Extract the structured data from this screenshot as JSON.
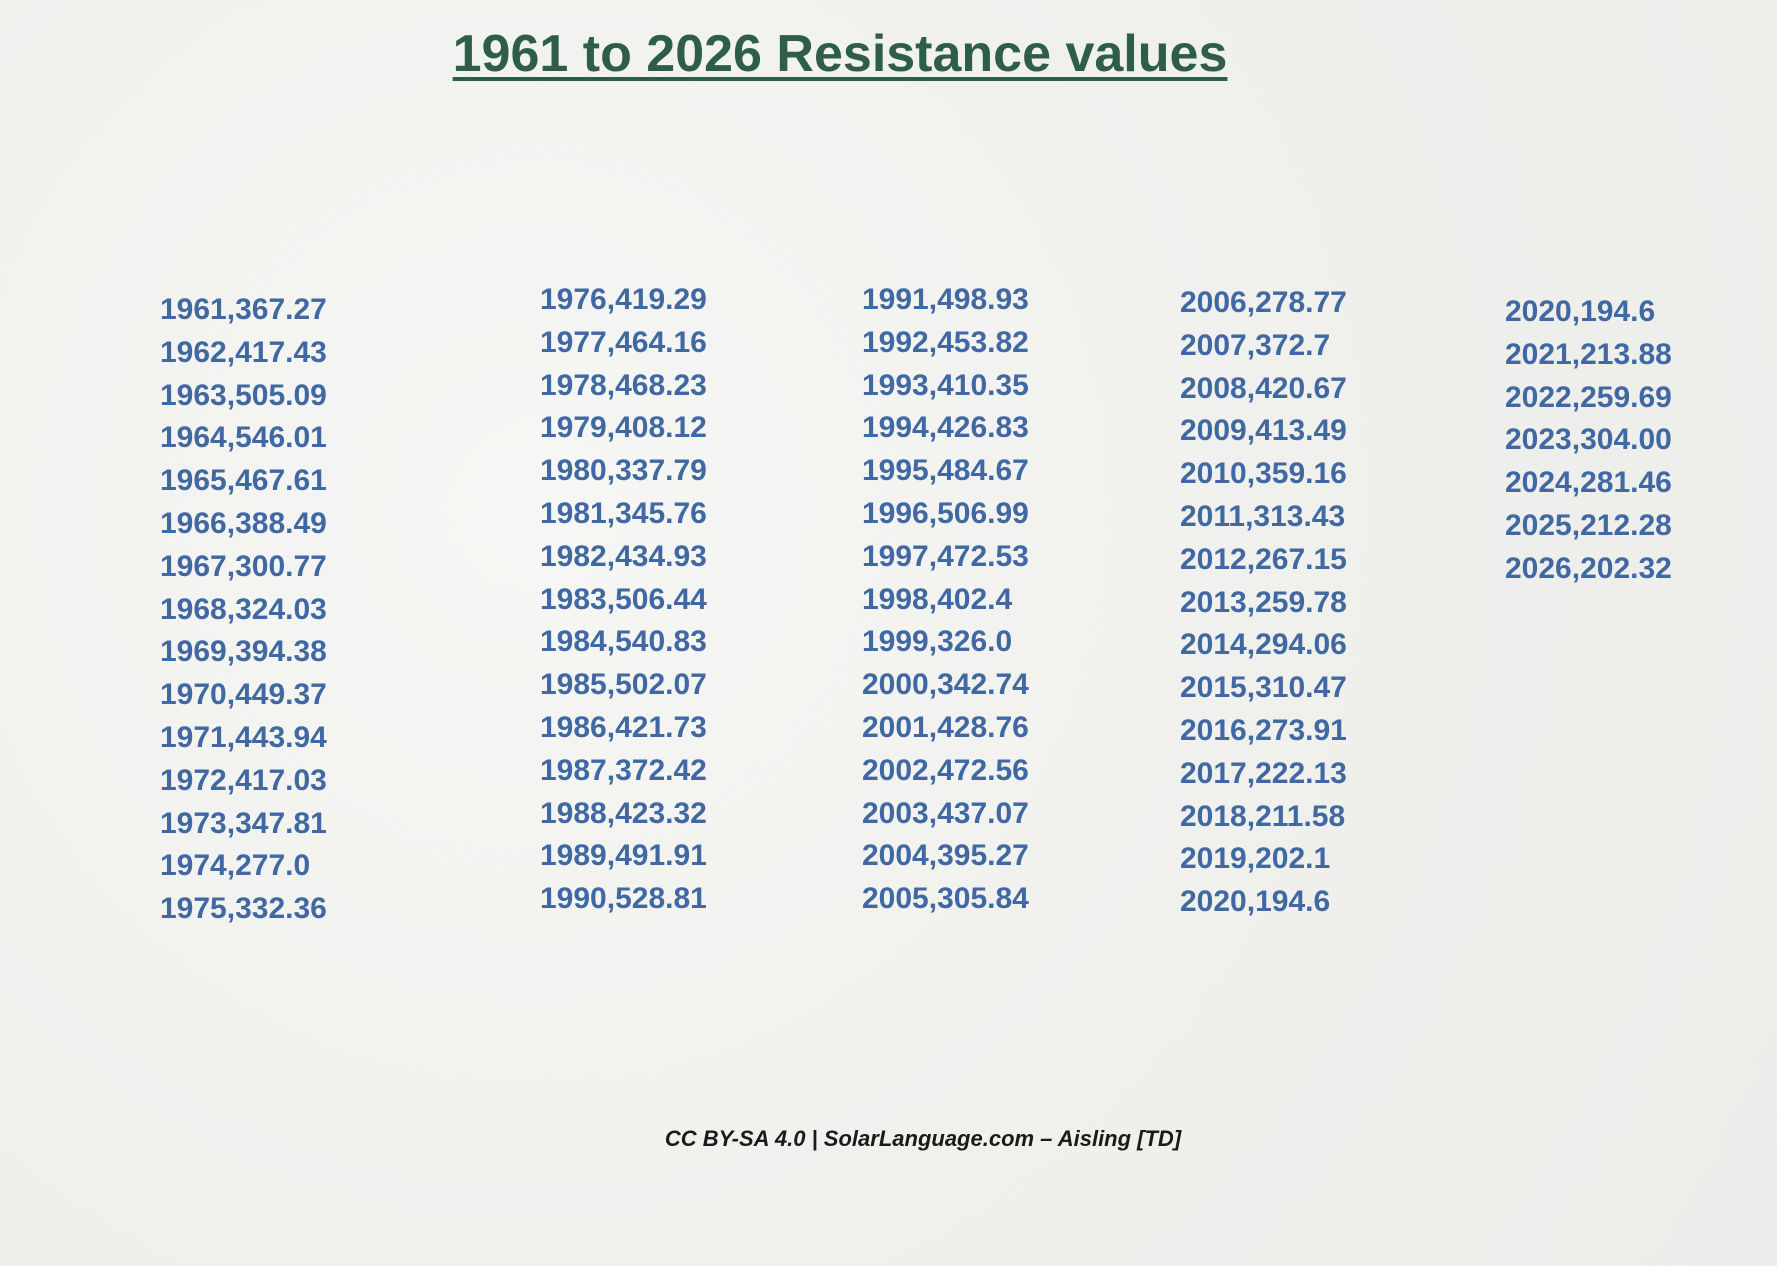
{
  "title": "1961 to 2026 Resistance values",
  "columns": [
    [
      "1961,367.27",
      "1962,417.43",
      "1963,505.09",
      "1964,546.01",
      "1965,467.61",
      "1966,388.49",
      "1967,300.77",
      "1968,324.03",
      "1969,394.38",
      "1970,449.37",
      "1971,443.94",
      "1972,417.03",
      "1973,347.81",
      "1974,277.0",
      "1975,332.36"
    ],
    [
      "1976,419.29",
      "1977,464.16",
      "1978,468.23",
      "1979,408.12",
      "1980,337.79",
      "1981,345.76",
      "1982,434.93",
      "1983,506.44",
      "1984,540.83",
      "1985,502.07",
      "1986,421.73",
      "1987,372.42",
      "1988,423.32",
      "1989,491.91",
      "1990,528.81"
    ],
    [
      "1991,498.93",
      "1992,453.82",
      "1993,410.35",
      "1994,426.83",
      "1995,484.67",
      "1996,506.99",
      "1997,472.53",
      "1998,402.4",
      "1999,326.0",
      "2000,342.74",
      "2001,428.76",
      "2002,472.56",
      "2003,437.07",
      "2004,395.27",
      "2005,305.84"
    ],
    [
      "2006,278.77",
      "2007,372.7",
      "2008,420.67",
      "2009,413.49",
      "2010,359.16",
      "2011,313.43",
      "2012,267.15",
      "2013,259.78",
      "2014,294.06",
      "2015,310.47",
      "2016,273.91",
      "2017,222.13",
      "2018,211.58",
      "2019,202.1",
      "2020,194.6"
    ],
    [
      "2020,194.6",
      "2021,213.88",
      "2022,259.69",
      "2023,304.00",
      "2024,281.46",
      "2025,212.28",
      "2026,202.32"
    ]
  ],
  "footer": "CC BY-SA 4.0 | SolarLanguage.com – Aisling [TD]"
}
